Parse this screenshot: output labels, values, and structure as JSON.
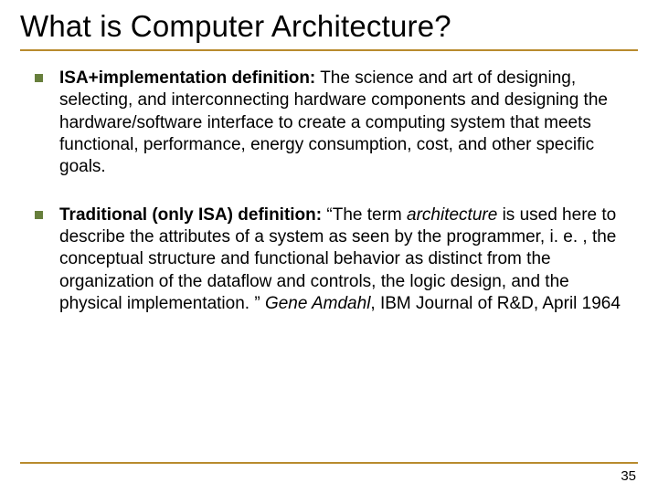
{
  "colors": {
    "rule": "#b88b2e",
    "bullet": "#677f3c",
    "background": "#ffffff",
    "text": "#000000"
  },
  "typography": {
    "title_family": "Arial",
    "body_family": "Verdana",
    "title_size_pt": 25,
    "body_size_pt": 14
  },
  "slide": {
    "title": "What is Computer Architecture?",
    "bullets": [
      {
        "bold_lead": "ISA+implementation definition:",
        "rest": " The science and art of designing, selecting, and interconnecting hardware components and designing the hardware/software interface to create a computing system that meets functional, performance, energy consumption, cost, and other specific goals."
      },
      {
        "bold_lead": "Traditional (only ISA) definition:",
        "quote_open": " “The term ",
        "italic_word_1": "architecture",
        "mid": " is used here to describe the attributes of a system as seen by the programmer, i. e. , the conceptual structure and functional behavior as distinct from the organization of the dataflow and controls, the logic design, and the physical implementation. ” ",
        "italic_author": "Gene Amdahl",
        "tail": ", IBM Journal of R&D, April 1964"
      }
    ],
    "page_number": "35"
  }
}
